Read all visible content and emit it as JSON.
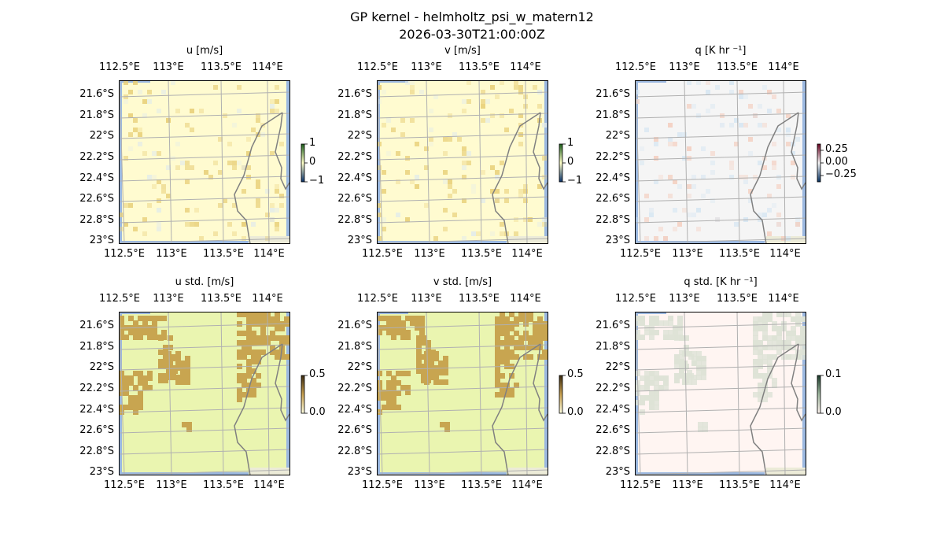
{
  "suptitle": "GP kernel - helmholtz_psi_w_matern12",
  "timestamp": "2026-03-30T21:00:00Z",
  "chart_data": [
    {
      "type": "heatmap",
      "title": "u [m/s]",
      "colorbar_ticks": [
        "1",
        "0",
        "−1"
      ],
      "colorbar_range": [
        -1,
        1
      ],
      "colors": [
        "#08306b",
        "#ffffc8",
        "#1a5e1a"
      ],
      "background": "#fffbd0",
      "blotch": "#e8cf78"
    },
    {
      "type": "heatmap",
      "title": "v [m/s]",
      "colorbar_ticks": [
        "1",
        "0",
        "−1"
      ],
      "colorbar_range": [
        -1,
        1
      ],
      "colors": [
        "#08306b",
        "#ffffc8",
        "#1a5e1a"
      ],
      "background": "#fffbd0",
      "blotch": "#e8cf78"
    },
    {
      "type": "heatmap",
      "title": "q [K hr ⁻¹]",
      "colorbar_ticks": [
        "0.25",
        "0.00",
        "−0.25"
      ],
      "colorbar_range": [
        -0.25,
        0.25
      ],
      "colors": [
        "#053061",
        "#f7f7f7",
        "#67001f"
      ],
      "background": "#f5f5f5",
      "blotch": "#d6e6f2"
    },
    {
      "type": "heatmap",
      "title": "u std. [m/s]",
      "colorbar_ticks": [
        "0.5",
        "0.0"
      ],
      "colorbar_range": [
        0,
        0.5
      ],
      "colors": [
        "#ffffe0",
        "#c8a050",
        "#3a2a10"
      ],
      "background": "#eaf5b0",
      "blotch": "#c8a550"
    },
    {
      "type": "heatmap",
      "title": "v std. [m/s]",
      "colorbar_ticks": [
        "0.5",
        "0.0"
      ],
      "colorbar_range": [
        0,
        0.5
      ],
      "colors": [
        "#ffffe0",
        "#c8a050",
        "#3a2a10"
      ],
      "background": "#eaf5b0",
      "blotch": "#c8a550"
    },
    {
      "type": "heatmap",
      "title": "q std. [K hr ⁻¹]",
      "colorbar_ticks": [
        "0.1",
        "0.0"
      ],
      "colorbar_range": [
        0,
        0.1
      ],
      "colors": [
        "#fff5f0",
        "#a0b8a0",
        "#1a3a2a"
      ],
      "background": "#fff5f2",
      "blotch": "#dde2d6"
    }
  ],
  "lon_ticks": [
    "112.5°E",
    "113°E",
    "113.5°E",
    "114°E"
  ],
  "lat_ticks": [
    "21.6°S",
    "21.8°S",
    "22°S",
    "22.2°S",
    "22.4°S",
    "22.6°S",
    "22.8°S",
    "23°S"
  ],
  "ocean_color": "#9bb8e0",
  "coast_color": "#808080",
  "grid_color": "#b0b0b0"
}
